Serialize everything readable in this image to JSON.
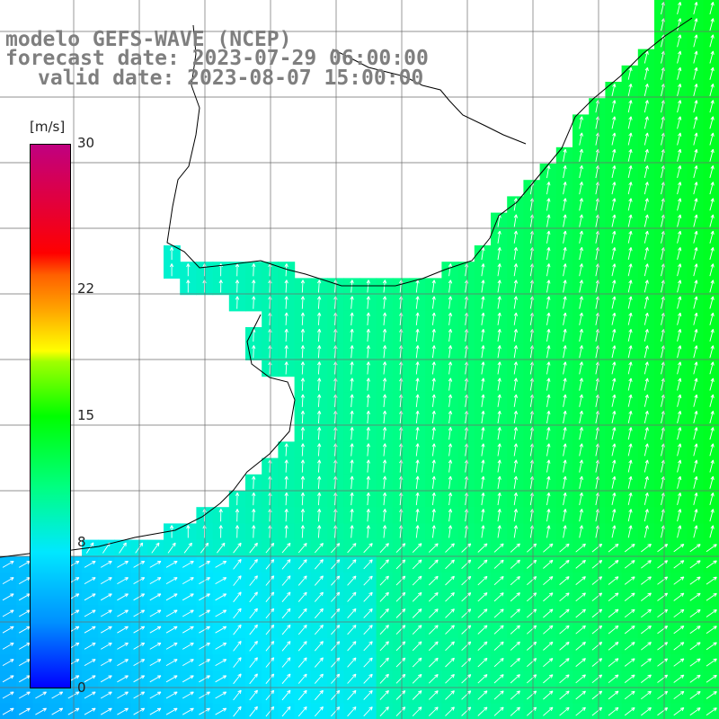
{
  "title": {
    "line1": "modelo GEFS-WAVE (NCEP)",
    "line2": "forecast date: 2023-07-29 06:00:00",
    "line3": "valid date: 2023-08-07 15:00:00"
  },
  "colorbar": {
    "unit": "[m/s]",
    "ticks": [
      {
        "label": "30",
        "value": 30
      },
      {
        "label": "22",
        "value": 22
      },
      {
        "label": "15",
        "value": 15
      },
      {
        "label": "8",
        "value": 8
      },
      {
        "label": "0",
        "value": 0
      }
    ],
    "vmin": 0,
    "vmax": 30,
    "palette": [
      "#0000ff",
      "#0090ff",
      "#00e8ff",
      "#00ff80",
      "#00ff00",
      "#a0ff00",
      "#ffff00",
      "#ff6000",
      "#ff0000",
      "#c00080"
    ]
  },
  "map": {
    "land_color": "#ffffff",
    "coastline_color": "#000000",
    "grid_color": "#6e6e6e",
    "arrow_color": "#ffffff",
    "grid_on": true
  }
}
